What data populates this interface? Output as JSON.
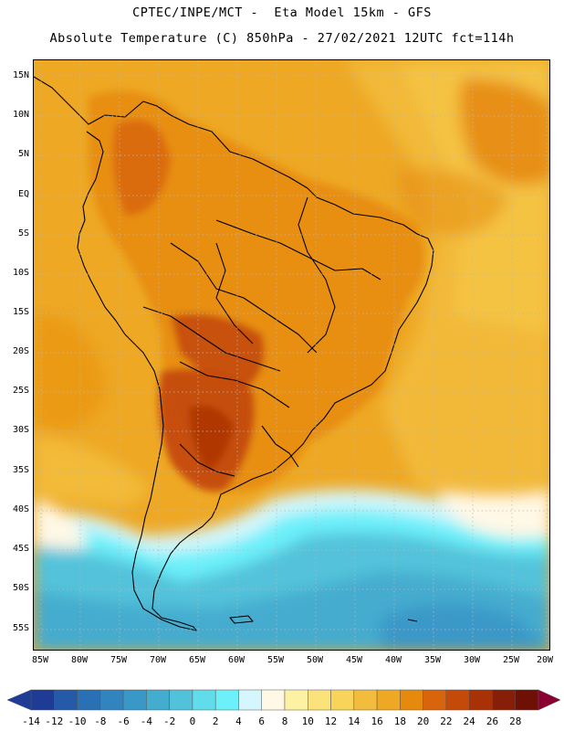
{
  "header": {
    "line1": "CPTEC/INPE/MCT -  Eta Model 15km - GFS",
    "line2": "Absolute Temperature (C) 850hPa - 27/02/2021 12UTC fct=114h"
  },
  "map": {
    "region": "South America",
    "latitude_labels": [
      "15N",
      "10N",
      "5N",
      "EQ",
      "5S",
      "10S",
      "15S",
      "20S",
      "25S",
      "30S",
      "35S",
      "40S",
      "45S",
      "50S",
      "55S"
    ],
    "longitude_labels": [
      "85W",
      "80W",
      "75W",
      "70W",
      "65W",
      "60W",
      "55W",
      "50W",
      "45W",
      "40W",
      "35W",
      "30W",
      "25W",
      "20W"
    ]
  },
  "colorbar": {
    "tick_labels": [
      "-14",
      "-12",
      "-10",
      "-8",
      "-6",
      "-4",
      "-2",
      "0",
      "2",
      "4",
      "6",
      "8",
      "10",
      "12",
      "14",
      "16",
      "18",
      "20",
      "22",
      "24",
      "26",
      "28"
    ],
    "colors": [
      "#1e3c96",
      "#245aa8",
      "#2a70b4",
      "#3284be",
      "#3a98c8",
      "#44accf",
      "#52c2da",
      "#60dceb",
      "#6cf0fa",
      "#d4f6fc",
      "#fff8e6",
      "#fdf2a4",
      "#fbe27a",
      "#f8d45a",
      "#f2bc3c",
      "#eea824",
      "#e68a0e",
      "#d8640c",
      "#c44a0a",
      "#a83206",
      "#861e08",
      "#6e1004"
    ]
  }
}
